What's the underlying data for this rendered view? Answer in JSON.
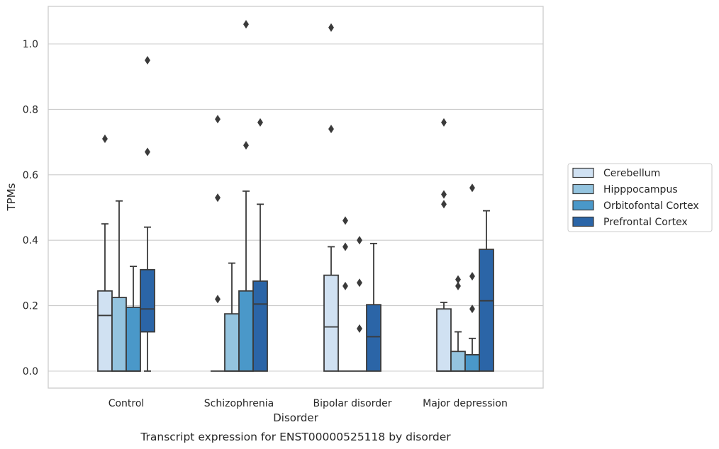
{
  "caption": "Transcript expression for ENST00000525118 by disorder",
  "chart_data": {
    "type": "box",
    "xlabel": "Disorder",
    "ylabel": "TPMs",
    "ylim": [
      -0.05,
      1.12
    ],
    "yticks": [
      "0.0",
      "0.2",
      "0.4",
      "0.6",
      "0.8",
      "1.0"
    ],
    "ytick_values": [
      0.0,
      0.2,
      0.4,
      0.6,
      0.8,
      1.0
    ],
    "grid": "horizontal",
    "legend_position": "right",
    "categories": [
      "Control",
      "Schizophrenia",
      "Bipolar disorder",
      "Major depression"
    ],
    "series": [
      {
        "name": "Cerebellum",
        "color": "#d0e1f2",
        "boxes": [
          {
            "q1": 0.0,
            "median": 0.17,
            "q3": 0.245,
            "whisker_low": 0.0,
            "whisker_high": 0.45,
            "outliers": [
              0.71
            ]
          },
          {
            "q1": 0.0,
            "median": 0.0,
            "q3": 0.0,
            "whisker_low": 0.0,
            "whisker_high": 0.0,
            "outliers": [
              0.22,
              0.53,
              0.77
            ]
          },
          {
            "q1": 0.0,
            "median": 0.135,
            "q3": 0.293,
            "whisker_low": 0.0,
            "whisker_high": 0.38,
            "outliers": [
              0.74,
              1.05
            ]
          },
          {
            "q1": 0.0,
            "median": 0.0,
            "q3": 0.19,
            "whisker_low": 0.0,
            "whisker_high": 0.21,
            "outliers": [
              0.51,
              0.54,
              0.76
            ]
          }
        ]
      },
      {
        "name": "Hipppocampus",
        "color": "#94c4df",
        "boxes": [
          {
            "q1": 0.0,
            "median": 0.0,
            "q3": 0.225,
            "whisker_low": 0.0,
            "whisker_high": 0.52,
            "outliers": []
          },
          {
            "q1": 0.0,
            "median": 0.0,
            "q3": 0.175,
            "whisker_low": 0.0,
            "whisker_high": 0.33,
            "outliers": []
          },
          {
            "q1": 0.0,
            "median": 0.0,
            "q3": 0.0,
            "whisker_low": 0.0,
            "whisker_high": 0.0,
            "outliers": [
              0.26,
              0.38,
              0.46
            ]
          },
          {
            "q1": 0.0,
            "median": 0.0,
            "q3": 0.06,
            "whisker_low": 0.0,
            "whisker_high": 0.12,
            "outliers": [
              0.26,
              0.28
            ]
          }
        ]
      },
      {
        "name": "Orbitofontal Cortex",
        "color": "#4a98c9",
        "boxes": [
          {
            "q1": 0.0,
            "median": 0.0,
            "q3": 0.195,
            "whisker_low": 0.0,
            "whisker_high": 0.32,
            "outliers": []
          },
          {
            "q1": 0.0,
            "median": 0.0,
            "q3": 0.245,
            "whisker_low": 0.0,
            "whisker_high": 0.55,
            "outliers": [
              0.69,
              1.06
            ]
          },
          {
            "q1": 0.0,
            "median": 0.0,
            "q3": 0.0,
            "whisker_low": 0.0,
            "whisker_high": 0.0,
            "outliers": [
              0.13,
              0.27,
              0.4
            ]
          },
          {
            "q1": 0.0,
            "median": 0.0,
            "q3": 0.05,
            "whisker_low": 0.0,
            "whisker_high": 0.1,
            "outliers": [
              0.19,
              0.29,
              0.56
            ]
          }
        ]
      },
      {
        "name": "Prefrontal Cortex",
        "color": "#2b65a7",
        "boxes": [
          {
            "q1": 0.12,
            "median": 0.19,
            "q3": 0.31,
            "whisker_low": 0.0,
            "whisker_high": 0.44,
            "outliers": [
              0.67,
              0.95
            ]
          },
          {
            "q1": 0.0,
            "median": 0.205,
            "q3": 0.275,
            "whisker_low": 0.0,
            "whisker_high": 0.51,
            "outliers": [
              0.76
            ]
          },
          {
            "q1": 0.0,
            "median": 0.105,
            "q3": 0.203,
            "whisker_low": 0.0,
            "whisker_high": 0.39,
            "outliers": []
          },
          {
            "q1": 0.0,
            "median": 0.215,
            "q3": 0.372,
            "whisker_low": 0.0,
            "whisker_high": 0.49,
            "outliers": []
          }
        ]
      }
    ]
  }
}
